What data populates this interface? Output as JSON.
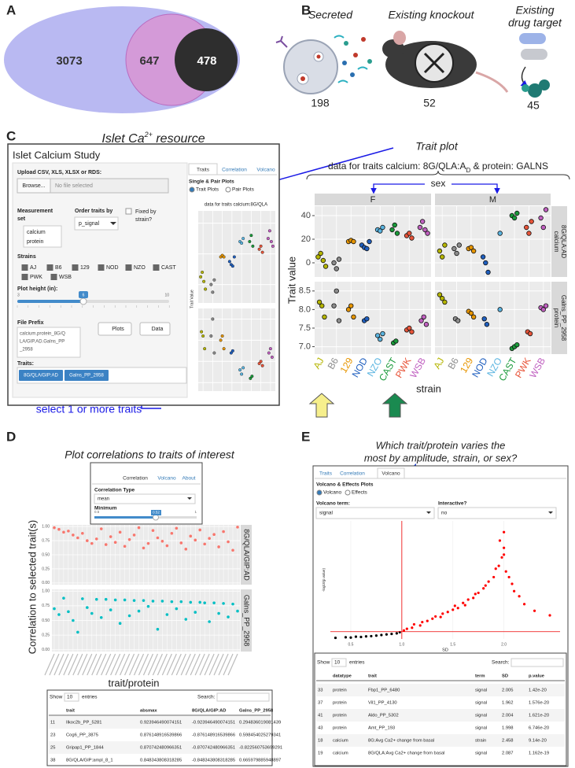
{
  "panels": {
    "a": {
      "label": "A",
      "counts": [
        "3073",
        "647",
        "478"
      ]
    },
    "b": {
      "label": "B",
      "items": [
        {
          "title": [
            "Secreted"
          ],
          "count": "198"
        },
        {
          "title": [
            "Existing knockout"
          ],
          "count": "52"
        },
        {
          "title": [
            "Existing",
            "drug target"
          ],
          "count": "45"
        }
      ]
    },
    "c": {
      "label": "C",
      "title": {
        "main": "Islet Ca",
        "sup": "2+",
        "end": " resource"
      },
      "trait_plot_note": "Trait plot",
      "select_note": "select 1 or more traits",
      "app": {
        "heading": "Islet Calcium Study",
        "upload_label": "Upload CSV, XLS, XLSX or RDS:",
        "browse": "Browse...",
        "no_file": "No file selected",
        "measurement_label": [
          "Measurement",
          "set"
        ],
        "measurement_sets": [
          "calcium",
          "protein"
        ],
        "order_label": "Order traits by",
        "order_value": "p_signal",
        "fixed_label": [
          "Fixed by",
          "strain?"
        ],
        "strains_label": "Strains",
        "strain_checks": [
          "AJ",
          "B6",
          "129",
          "NOD",
          "NZO",
          "CAST",
          "PWK",
          "WSB"
        ],
        "height_label": "Plot height (in):",
        "height_ticks": [
          "3",
          "6",
          "10"
        ],
        "prefix_label": "File Prefix",
        "prefix_value": [
          "calcium.protein_8G/Q",
          "LA/GIP.AD.Galns_PP",
          "_2958"
        ],
        "plots_button": "Plots",
        "data_button": "Data",
        "traits_label": "Traits:",
        "traits": [
          "8G/QLA/GIP:AD",
          "Galns_PP_2958"
        ],
        "tabs": [
          "Traits",
          "Correlation",
          "Volcano"
        ],
        "plot_type_label": "Single & Pair Plots",
        "plot_types": [
          "Trait Plots",
          "Pair Plots"
        ],
        "mini_title": "data for traits calcium:8G/QLA",
        "mini_y_label": "Trait Value"
      },
      "trait_plot": {
        "type": "strip",
        "title": {
          "pre": "data for traits calcium: 8G/QLA:A",
          "sub": "D",
          "post": " & protein: GALNS"
        },
        "sex_label": "sex",
        "y_label": "Trait value",
        "x_label": "strain",
        "facets": [
          "F",
          "M"
        ],
        "strains": [
          "AJ",
          "B6",
          "129",
          "NOD",
          "NZO",
          "CAST",
          "PWK",
          "WSB"
        ],
        "strain_colors": [
          "#b5b500",
          "#8c8c8c",
          "#e69500",
          "#1f5fbf",
          "#5ab4e0",
          "#1a9a3a",
          "#e8553a",
          "#c060c0"
        ],
        "traits": [
          {
            "strip": [
              "calcium",
              "8G/QLA:AD"
            ],
            "ylim": [
              -12,
              48
            ],
            "yticks": [
              0,
              20,
              40
            ],
            "values": [
              [
                [
                  5,
                  8,
                  2,
                  -3
                ],
                [
                  0,
                  -5,
                  3
                ],
                [
                  18,
                  19,
                  18
                ],
                [
                  15,
                  13,
                  12,
                  18
                ],
                [
                  28,
                  27,
                  30
                ],
                [
                  28,
                  32,
                  25
                ],
                [
                  23,
                  25,
                  21
                ],
                [
                  30,
                  35,
                  28,
                  25
                ]
              ],
              [
                [
                  10,
                  5,
                  15
                ],
                [
                  12,
                  8,
                  15
                ],
                [
                  12,
                  13,
                  10
                ],
                [
                  5,
                  0,
                  -8
                ],
                [
                  25
                ],
                [
                  40,
                  38,
                  42
                ],
                [
                  30,
                  25,
                  35
                ],
                [
                  38,
                  30,
                  45
                ]
              ]
            ]
          },
          {
            "strip": [
              "protein",
              "Galns_PP_2958"
            ],
            "ylim": [
              6.8,
              8.75
            ],
            "yticks": [
              {
                "value": 7,
                "label": "7.0"
              },
              7.5,
              {
                "value": 8,
                "label": "8.0"
              },
              8.5
            ],
            "values": [
              [
                [
                  8.2,
                  8.1,
                  7.8
                ],
                [
                  8.1,
                  8.5,
                  7.7
                ],
                [
                  8.0,
                  8.1,
                  7.8
                ],
                [
                  7.7,
                  7.75
                ],
                [
                  7.3,
                  7.2,
                  7.35
                ],
                [
                  7.1,
                  7.15
                ],
                [
                  7.45,
                  7.5,
                  7.4
                ],
                [
                  7.7,
                  7.8,
                  7.6
                ]
              ],
              [
                [
                  8.4,
                  8.3,
                  8.2
                ],
                [
                  7.75,
                  7.7
                ],
                [
                  7.95,
                  7.9,
                  7.8
                ],
                [
                  7.75,
                  7.6
                ],
                [
                  8.0
                ],
                [
                  6.95,
                  7.0,
                  7.05
                ],
                [
                  7.4,
                  7.35
                ],
                [
                  8.05,
                  8.0,
                  8.1
                ]
              ]
            ]
          }
        ]
      }
    },
    "d": {
      "label": "D",
      "title": "Plot correlations to traits of interest",
      "controls": {
        "tabs": [
          "Correlation",
          "Volcano",
          "About"
        ],
        "type_label": "Correlation Type",
        "type_value": "mean",
        "min_label": "Minimum",
        "min_ticks": [
          "0.5",
          "0.52",
          "1"
        ]
      },
      "correlation_plot": {
        "type": "scatter",
        "y_label": "Correlation to selected trait(s)",
        "x_label": "trait/protein",
        "facets": [
          "8G/QLA/GIP:AD",
          "Galns_PP_2958"
        ],
        "ylim": [
          -0.03,
          1.03
        ],
        "yticks": [
          {
            "value": 0,
            "label": "0.00"
          },
          0.25,
          {
            "value": 0.5,
            "label": "0.50"
          },
          0.75,
          {
            "value": 1,
            "label": "1.00"
          }
        ],
        "series": [
          {
            "color": "#f8766d",
            "values": [
              0.98,
              0.95,
              0.9,
              0.92,
              0.85,
              0.8,
              0.88,
              0.75,
              0.7,
              0.78,
              0.96,
              0.68,
              0.82,
              0.72,
              0.9,
              0.65,
              0.77,
              0.85,
              0.98,
              0.62,
              0.7,
              0.93,
              0.8,
              0.74,
              0.66,
              0.88,
              0.97,
              0.71,
              0.6,
              0.83,
              0.76,
              0.94,
              0.69,
              0.79,
              0.86,
              0.64,
              0.91,
              0.73,
              0.58,
              0.99
            ]
          },
          {
            "color": "#00bfc4",
            "values": [
              0.7,
              0.6,
              0.88,
              0.65,
              0.5,
              0.3,
              0.87,
              0.72,
              0.62,
              0.86,
              0.55,
              0.86,
              0.68,
              0.85,
              0.45,
              0.85,
              0.58,
              0.84,
              0.66,
              0.84,
              0.74,
              0.83,
              0.35,
              0.83,
              0.6,
              0.82,
              0.7,
              0.82,
              0.52,
              0.81,
              0.64,
              0.81,
              0.8,
              0.48,
              0.8,
              0.62,
              0.79,
              0.56,
              0.78,
              0.66
            ]
          }
        ]
      },
      "table": {
        "show": "Show",
        "length": "10",
        "entries": "entries",
        "search": "Search:",
        "columns": [
          "trait",
          "absmax",
          "8G/QLA/GIP:AD",
          "Galns_PP_2958"
        ],
        "rows": [
          [
            "11",
            "Ilkoc2b_PP_5281",
            "0.923946490074151",
            "-0.923946490074151",
            "0.294836019081439"
          ],
          [
            "23",
            "Cog6_PP_3875",
            "0.876148916539866",
            "-0.876148916539866",
            "0.598454025279341"
          ],
          [
            "25",
            "Gripap1_PP_1844",
            "0.870742480966351",
            "-0.870742480966351",
            "-0.822560753699291"
          ],
          [
            "38",
            "8G/QLA/GIP:ampl_8_1",
            "0.848343808318285",
            "-0.848343808318285",
            "0.665979885948897"
          ]
        ]
      }
    },
    "e": {
      "label": "E",
      "title": [
        "Which trait/protein varies the",
        "most by amplitude, strain, or sex?"
      ],
      "controls": {
        "tabs": [
          "Traits",
          "Correlation",
          "Volcano"
        ],
        "section": "Volcano & Effects Plots",
        "plot_types": [
          "Volcano",
          "Effects"
        ],
        "term_label": "Volcano term:",
        "term_value": "signal",
        "interactive_label": "Interactive?",
        "interactive_value": "no"
      },
      "volcano": {
        "type": "scatter",
        "x_label": "SD",
        "y_label": "-log10(p.value)",
        "xlim": [
          0.3,
          2.55
        ],
        "ylim": [
          0,
          21
        ],
        "xticks": [
          0.5,
          {
            "value": 1,
            "label": "1.0"
          },
          1.5,
          {
            "value": 2,
            "label": "2.0"
          }
        ],
        "vline": 1,
        "hline": 1.3,
        "series": [
          {
            "color": "#000000",
            "x": [
              0.35,
              0.45,
              0.55,
              0.6,
              0.7,
              0.75,
              0.8,
              0.85,
              0.9,
              0.95,
              0.98,
              0.5,
              0.65
            ],
            "values": [
              0.2,
              0.3,
              0.4,
              0.35,
              0.5,
              0.6,
              0.7,
              0.8,
              0.9,
              1.0,
              1.2,
              0.25,
              0.45
            ]
          },
          {
            "color": "#ff0000",
            "x": [
              1.02,
              1.05,
              1.1,
              1.12,
              1.18,
              1.2,
              1.25,
              1.3,
              1.33,
              1.38,
              1.4,
              1.45,
              1.5,
              1.52,
              1.55,
              1.6,
              1.62,
              1.65,
              1.7,
              1.72,
              1.75,
              1.8,
              1.82,
              1.85,
              1.9,
              1.92,
              1.95,
              1.98,
              2.0,
              2.0,
              2.02,
              2.05,
              2.08,
              2.1,
              2.15,
              2.2,
              2.3,
              2.45,
              1.96,
              2.0
            ],
            "values": [
              1.5,
              1.8,
              2.0,
              2.6,
              2.4,
              3.0,
              3.2,
              3.6,
              4.0,
              3.9,
              4.5,
              4.8,
              5.2,
              5.9,
              5.5,
              6.4,
              6.0,
              7.0,
              7.3,
              8.0,
              8.2,
              9.0,
              9.5,
              10.2,
              11.0,
              12.5,
              13.0,
              14.5,
              15.0,
              16.2,
              12.0,
              11.0,
              9.8,
              8.5,
              7.6,
              6.2,
              5.0,
              4.2,
              17.5,
              19.0
            ]
          }
        ]
      },
      "table": {
        "show": "Show",
        "length": "10",
        "entries": "entries",
        "search": "Search:",
        "columns": [
          "datatype",
          "trait",
          "term",
          "SD",
          "p.value"
        ],
        "rows": [
          [
            "33",
            "protein",
            "Fbp1_PP_6480",
            "signal",
            "2.005",
            "1.42e-20"
          ],
          [
            "37",
            "protein",
            "Vil1_PP_4130",
            "signal",
            "1.962",
            "1.576e-20"
          ],
          [
            "41",
            "protein",
            "Aldo_PP_5302",
            "signal",
            "2.004",
            "1.621e-20"
          ],
          [
            "43",
            "protein",
            "Amt_PP_193",
            "signal",
            "1.998",
            "6.746e-20"
          ],
          [
            "18",
            "calcium",
            "8G:Avg Ca2+ change from basal",
            "strain",
            "2.458",
            "9.14e-20"
          ],
          [
            "19",
            "calcium",
            "8G/QLA:Avg Ca2+ change from basal",
            "signal",
            "2.087",
            "1.162e-19"
          ]
        ]
      }
    }
  }
}
